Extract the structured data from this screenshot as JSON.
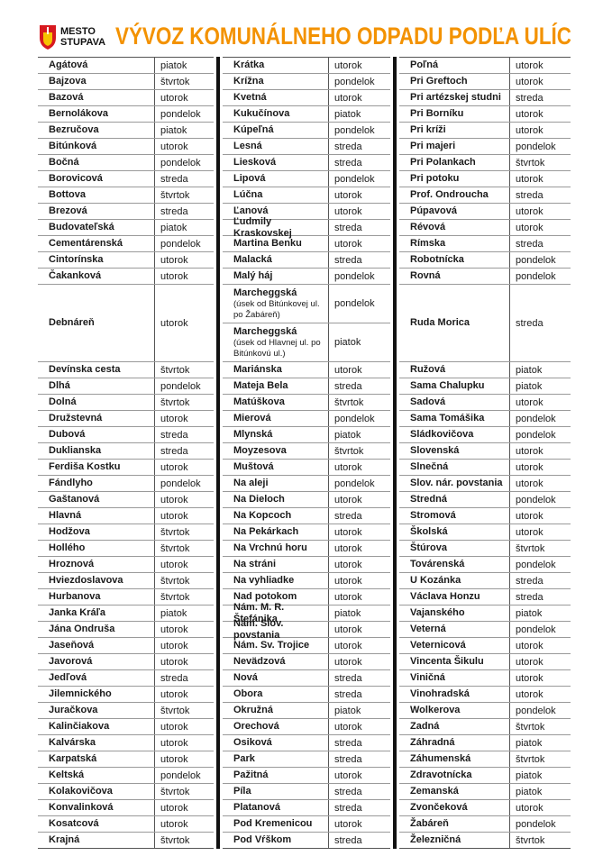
{
  "header": {
    "logo_lines": [
      "MESTO",
      "STUPAVA"
    ],
    "title": "VÝVOZ KOMUNÁLNEHO ODPADU PODĽA ULÍC"
  },
  "columns": [
    {
      "entries": [
        {
          "street": "Agátová",
          "day": "piatok"
        },
        {
          "street": "Bajzova",
          "day": "štvrtok"
        },
        {
          "street": "Bazová",
          "day": "utorok"
        },
        {
          "street": "Bernolákova",
          "day": "pondelok"
        },
        {
          "street": "Bezručova",
          "day": "piatok"
        },
        {
          "street": "Bitúnková",
          "day": "utorok"
        },
        {
          "street": "Bočná",
          "day": "pondelok"
        },
        {
          "street": "Borovicová",
          "day": "streda"
        },
        {
          "street": "Bottova",
          "day": "štvrtok"
        },
        {
          "street": "Brezová",
          "day": "streda"
        },
        {
          "street": "Budovateľská",
          "day": "piatok"
        },
        {
          "street": "Cementárenská",
          "day": "pondelok"
        },
        {
          "street": "Cintorínska",
          "day": "utorok"
        },
        {
          "street": "Čakanková",
          "day": "utorok"
        },
        {
          "street": "Debnáreň",
          "day": "utorok"
        },
        {
          "street": "Devínska cesta",
          "day": "štvrtok"
        },
        {
          "street": "Dlhá",
          "day": "pondelok"
        },
        {
          "street": "Dolná",
          "day": "štvrtok"
        },
        {
          "street": "Družstevná",
          "day": "utorok"
        },
        {
          "street": "Dubová",
          "day": "streda"
        },
        {
          "street": "Duklianska",
          "day": "streda"
        },
        {
          "street": "Ferdiša Kostku",
          "day": "utorok"
        },
        {
          "street": "Fándlyho",
          "day": "pondelok"
        },
        {
          "street": "Gaštanová",
          "day": "utorok"
        },
        {
          "street": "Hlavná",
          "day": "utorok"
        },
        {
          "street": "Hodžova",
          "day": "štvrtok"
        },
        {
          "street": "Hollého",
          "day": "štvrtok"
        },
        {
          "street": "Hroznová",
          "day": "utorok"
        },
        {
          "street": "Hviezdoslavova",
          "day": "štvrtok"
        },
        {
          "street": "Hurbanova",
          "day": "štvrtok"
        },
        {
          "street": "Janka Kráľa",
          "day": "piatok"
        },
        {
          "street": "Jána Ondruša",
          "day": "utorok"
        },
        {
          "street": "Jaseňová",
          "day": "utorok"
        },
        {
          "street": "Javorová",
          "day": "utorok"
        },
        {
          "street": "Jedľová",
          "day": "streda"
        },
        {
          "street": "Jilemnického",
          "day": "utorok"
        },
        {
          "street": "Juračkova",
          "day": "štvrtok"
        },
        {
          "street": "Kalinčiakova",
          "day": "utorok"
        },
        {
          "street": "Kalvárska",
          "day": "utorok"
        },
        {
          "street": "Karpatská",
          "day": "utorok"
        },
        {
          "street": "Keltská",
          "day": "pondelok"
        },
        {
          "street": "Kolakovičova",
          "day": "štvrtok"
        },
        {
          "street": "Konvalinková",
          "day": "utorok"
        },
        {
          "street": "Kosatcová",
          "day": "utorok"
        },
        {
          "street": "Krajná",
          "day": "štvrtok"
        }
      ]
    },
    {
      "entries": [
        {
          "street": "Krátka",
          "day": "utorok"
        },
        {
          "street": "Krížna",
          "day": "pondelok"
        },
        {
          "street": "Kvetná",
          "day": "utorok"
        },
        {
          "street": "Kukučínova",
          "day": "piatok"
        },
        {
          "street": "Kúpeľná",
          "day": "pondelok"
        },
        {
          "street": "Lesná",
          "day": "streda"
        },
        {
          "street": "Liesková",
          "day": "streda"
        },
        {
          "street": "Lipová",
          "day": "pondelok"
        },
        {
          "street": "Lúčna",
          "day": "utorok"
        },
        {
          "street": "Ľanová",
          "day": "utorok"
        },
        {
          "street": "Ľudmily Kraskovskej",
          "day": "streda"
        },
        {
          "street": "Martina Benku",
          "day": "utorok"
        },
        {
          "street": "Malacká",
          "day": "streda"
        },
        {
          "street": "Malý háj",
          "day": "pondelok"
        },
        {
          "street": "Marcheggská",
          "note": "(úsek od Bitúnkovej ul. po Žabáreň)",
          "day": "pondelok"
        },
        {
          "street": "Marcheggská",
          "note": "(úsek od Hlavnej ul. po Bitúnkovú ul.)",
          "day": "piatok"
        },
        {
          "street": "Mariánska",
          "day": "utorok"
        },
        {
          "street": "Mateja Bela",
          "day": "streda"
        },
        {
          "street": "Matúškova",
          "day": "štvrtok"
        },
        {
          "street": "Mierová",
          "day": "pondelok"
        },
        {
          "street": "Mlynská",
          "day": "piatok"
        },
        {
          "street": "Moyzesova",
          "day": "štvrtok"
        },
        {
          "street": "Muštová",
          "day": "utorok"
        },
        {
          "street": "Na aleji",
          "day": "pondelok"
        },
        {
          "street": "Na Dieloch",
          "day": "utorok"
        },
        {
          "street": "Na Kopcoch",
          "day": "streda"
        },
        {
          "street": "Na Pekárkach",
          "day": "utorok"
        },
        {
          "street": "Na Vrchnú horu",
          "day": "utorok"
        },
        {
          "street": "Na stráni",
          "day": "utorok"
        },
        {
          "street": "Na vyhliadke",
          "day": "utorok"
        },
        {
          "street": "Nad potokom",
          "day": "utorok"
        },
        {
          "street": "Nám. M. R. Štefánika",
          "day": "piatok"
        },
        {
          "street": "Nám. Slov. povstania",
          "day": "utorok"
        },
        {
          "street": "Nám. Sv. Trojice",
          "day": "utorok"
        },
        {
          "street": "Nevädzová",
          "day": "utorok"
        },
        {
          "street": "Nová",
          "day": "streda"
        },
        {
          "street": "Obora",
          "day": "streda"
        },
        {
          "street": "Okružná",
          "day": "piatok"
        },
        {
          "street": "Orechová",
          "day": "utorok"
        },
        {
          "street": "Osiková",
          "day": "streda"
        },
        {
          "street": "Park",
          "day": "streda"
        },
        {
          "street": "Pažitná",
          "day": "utorok"
        },
        {
          "street": "Píla",
          "day": "streda"
        },
        {
          "street": "Platanová",
          "day": "streda"
        },
        {
          "street": "Pod Kremenicou",
          "day": "utorok"
        },
        {
          "street": "Pod Vŕškom",
          "day": "streda"
        }
      ]
    },
    {
      "entries": [
        {
          "street": "Poľná",
          "day": "utorok"
        },
        {
          "street": "Pri Greftoch",
          "day": "utorok"
        },
        {
          "street": "Pri artézskej studni",
          "day": "streda"
        },
        {
          "street": "Pri Borníku",
          "day": "utorok"
        },
        {
          "street": "Pri kríži",
          "day": "utorok"
        },
        {
          "street": "Pri majeri",
          "day": "pondelok"
        },
        {
          "street": "Pri Polankach",
          "day": "štvrtok"
        },
        {
          "street": "Pri potoku",
          "day": "utorok"
        },
        {
          "street": "Prof. Ondroucha",
          "day": "streda"
        },
        {
          "street": "Púpavová",
          "day": "utorok"
        },
        {
          "street": "Révová",
          "day": "utorok"
        },
        {
          "street": "Rímska",
          "day": "streda"
        },
        {
          "street": "Robotnícka",
          "day": "pondelok"
        },
        {
          "street": "Rovná",
          "day": "pondelok"
        },
        {
          "street": "Ruda Morica",
          "day": "streda"
        },
        {
          "street": "Ružová",
          "day": "piatok"
        },
        {
          "street": "Sama Chalupku",
          "day": "piatok"
        },
        {
          "street": "Sadová",
          "day": "utorok"
        },
        {
          "street": "Sama Tomášika",
          "day": "pondelok"
        },
        {
          "street": "Sládkovičova",
          "day": "pondelok"
        },
        {
          "street": "Slovenská",
          "day": "utorok"
        },
        {
          "street": "Slnečná",
          "day": "utorok"
        },
        {
          "street": "Slov. nár. povstania",
          "day": "utorok"
        },
        {
          "street": "Stredná",
          "day": "pondelok"
        },
        {
          "street": "Stromová",
          "day": "utorok"
        },
        {
          "street": "Školská",
          "day": "utorok"
        },
        {
          "street": "Štúrova",
          "day": "štvrtok"
        },
        {
          "street": "Továrenská",
          "day": "pondelok"
        },
        {
          "street": "U Kozánka",
          "day": "streda"
        },
        {
          "street": "Václava Honzu",
          "day": "streda"
        },
        {
          "street": "Vajanského",
          "day": "piatok"
        },
        {
          "street": "Veterná",
          "day": "pondelok"
        },
        {
          "street": "Veternicová",
          "day": "utorok"
        },
        {
          "street": "Vincenta Šikulu",
          "day": "utorok"
        },
        {
          "street": "Viničná",
          "day": "utorok"
        },
        {
          "street": "Vinohradská",
          "day": "utorok"
        },
        {
          "street": "Wolkerova",
          "day": "pondelok"
        },
        {
          "street": "Zadná",
          "day": "štvrtok"
        },
        {
          "street": "Záhradná",
          "day": "piatok"
        },
        {
          "street": "Záhumenská",
          "day": "štvrtok"
        },
        {
          "street": "Zdravotnícka",
          "day": "piatok"
        },
        {
          "street": "Zemanská",
          "day": "piatok"
        },
        {
          "street": "Zvončeková",
          "day": "utorok"
        },
        {
          "street": "Žabáreň",
          "day": "pondelok"
        },
        {
          "street": "Železničná",
          "day": "štvrtok"
        }
      ]
    }
  ]
}
